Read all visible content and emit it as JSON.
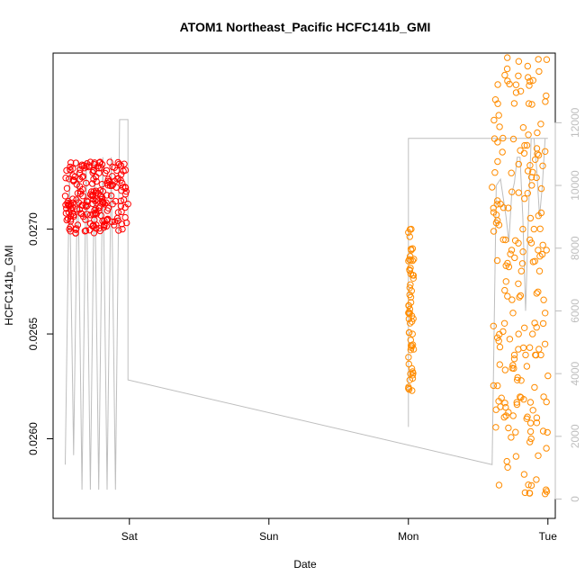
{
  "chart_data": {
    "type": "scatter",
    "title": "ATOM1 Northeast_Pacific HCFC141b_GMI",
    "xlabel": "Date",
    "ylabel": "HCFC141b_GMI",
    "x_tick_labels": [
      "Sat",
      "Sun",
      "Mon",
      "Tue"
    ],
    "x_tick_days": [
      1,
      2,
      3,
      4
    ],
    "xlim_days": [
      0.453,
      4.053
    ],
    "ylim": [
      0.02562,
      0.02784
    ],
    "y_ticks": [
      "0.0260",
      "0.0265",
      "0.0270"
    ],
    "y_tick_values": [
      0.026,
      0.0265,
      0.027
    ],
    "y2_ticks": [
      "0",
      "2000",
      "4000",
      "6000",
      "8000",
      "10000",
      "12000"
    ],
    "y2_tick_values": [
      0,
      2000,
      4000,
      6000,
      8000,
      10000,
      12000
    ],
    "y2lim": [
      -616,
      14220
    ],
    "grid": false,
    "legend": "none",
    "colors": {
      "flight1": "#ff0000",
      "flight2": "#ff8c00",
      "altitude": "#bebebe",
      "axis": "#000000"
    },
    "series": [
      {
        "marker": "open-circle",
        "color": "#ff0000",
        "segments": [
          {
            "x_range": [
              0.54,
              0.99
            ],
            "y_min": 0.02698,
            "y_max": 0.02732
          }
        ],
        "points": [
          [
            0.55,
            0.02728
          ],
          [
            0.56,
            0.02705
          ],
          [
            0.57,
            0.027
          ],
          [
            0.58,
            0.02712
          ],
          [
            0.6,
            0.02706
          ],
          [
            0.62,
            0.02714
          ],
          [
            0.63,
            0.02702
          ],
          [
            0.65,
            0.02718
          ],
          [
            0.66,
            0.0273
          ],
          [
            0.67,
            0.02706
          ],
          [
            0.69,
            0.02722
          ],
          [
            0.7,
            0.02713
          ],
          [
            0.72,
            0.02732
          ],
          [
            0.73,
            0.02716
          ],
          [
            0.75,
            0.02709
          ],
          [
            0.76,
            0.02725
          ],
          [
            0.78,
            0.0271
          ],
          [
            0.79,
            0.02732
          ],
          [
            0.81,
            0.02718
          ],
          [
            0.82,
            0.02704
          ],
          [
            0.84,
            0.02722
          ],
          [
            0.85,
            0.0271
          ],
          [
            0.86,
            0.02732
          ],
          [
            0.88,
            0.02712
          ],
          [
            0.89,
            0.02702
          ],
          [
            0.91,
            0.02728
          ],
          [
            0.92,
            0.02708
          ],
          [
            0.94,
            0.02726
          ],
          [
            0.95,
            0.027
          ],
          [
            0.96,
            0.02714
          ],
          [
            0.97,
            0.0272
          ],
          [
            0.98,
            0.02703
          ],
          [
            0.99,
            0.02712
          ]
        ]
      },
      {
        "marker": "open-circle",
        "color": "#ff8c00",
        "segments": [
          {
            "x_range": [
              3.0,
              3.04
            ],
            "y_min": 0.02622,
            "y_max": 0.027
          },
          {
            "x_range": [
              3.6,
              4.0
            ],
            "y_min": 0.02573,
            "y_max": 0.02784
          }
        ],
        "points": [
          [
            3.0,
            0.02624
          ],
          [
            3.01,
            0.02628
          ],
          [
            3.01,
            0.0266
          ],
          [
            3.01,
            0.02672
          ],
          [
            3.02,
            0.0269
          ],
          [
            3.02,
            0.027
          ],
          [
            3.03,
            0.02685
          ],
          [
            3.03,
            0.02632
          ],
          [
            3.6,
            0.0272
          ],
          [
            3.61,
            0.0271
          ],
          [
            3.62,
            0.02727
          ],
          [
            3.63,
            0.02703
          ],
          [
            3.65,
            0.02702
          ],
          [
            3.66,
            0.02712
          ],
          [
            3.68,
            0.02695
          ],
          [
            3.7,
            0.02675
          ],
          [
            3.71,
            0.02668
          ],
          [
            3.72,
            0.02682
          ],
          [
            3.74,
            0.0269
          ],
          [
            3.75,
            0.0266
          ],
          [
            3.76,
            0.0264
          ],
          [
            3.78,
            0.02628
          ],
          [
            3.79,
            0.0265
          ],
          [
            3.8,
            0.0262
          ],
          [
            3.81,
            0.0268
          ],
          [
            3.82,
            0.027
          ],
          [
            3.83,
            0.02583
          ],
          [
            3.84,
            0.0264
          ],
          [
            3.85,
            0.0274
          ],
          [
            3.86,
            0.02745
          ],
          [
            3.86,
            0.02578
          ],
          [
            3.87,
            0.02574
          ],
          [
            3.88,
            0.026
          ],
          [
            3.89,
            0.0265
          ],
          [
            3.9,
            0.027
          ],
          [
            3.91,
            0.0264
          ],
          [
            3.92,
            0.0261
          ],
          [
            3.93,
            0.0269
          ],
          [
            3.94,
            0.0268
          ],
          [
            3.95,
            0.0264
          ],
          [
            3.96,
            0.02688
          ],
          [
            3.97,
            0.0262
          ],
          [
            3.98,
            0.0266
          ],
          [
            3.99,
            0.0269
          ],
          [
            4.0,
            0.0263
          ]
        ]
      }
    ],
    "altitude_line": {
      "color": "#bebebe",
      "y_axis": "right",
      "points": [
        [
          0.54,
          1100
        ],
        [
          0.57,
          10500
        ],
        [
          0.6,
          1400
        ],
        [
          0.63,
          10800
        ],
        [
          0.66,
          300
        ],
        [
          0.69,
          10800
        ],
        [
          0.72,
          300
        ],
        [
          0.75,
          10800
        ],
        [
          0.78,
          300
        ],
        [
          0.81,
          10900
        ],
        [
          0.84,
          300
        ],
        [
          0.87,
          10900
        ],
        [
          0.9,
          300
        ],
        [
          0.93,
          12100
        ],
        [
          0.99,
          12100
        ],
        [
          0.99,
          3800
        ],
        [
          3.6,
          1100
        ],
        [
          3.63,
          10000
        ],
        [
          3.66,
          10200
        ],
        [
          3.68,
          9600
        ],
        [
          3.7,
          9000
        ],
        [
          3.72,
          8200
        ],
        [
          3.74,
          9700
        ],
        [
          3.76,
          10100
        ],
        [
          3.78,
          10900
        ],
        [
          3.8,
          10900
        ],
        [
          3.82,
          9000
        ],
        [
          3.84,
          6000
        ],
        [
          3.86,
          9000
        ],
        [
          3.88,
          11500
        ],
        [
          3.9,
          11500
        ],
        [
          3.92,
          10500
        ],
        [
          3.94,
          9000
        ],
        [
          3.96,
          10000
        ],
        [
          3.98,
          11500
        ],
        [
          4.0,
          11500
        ],
        [
          3.0,
          11500
        ],
        [
          3.0,
          2300
        ]
      ]
    }
  }
}
